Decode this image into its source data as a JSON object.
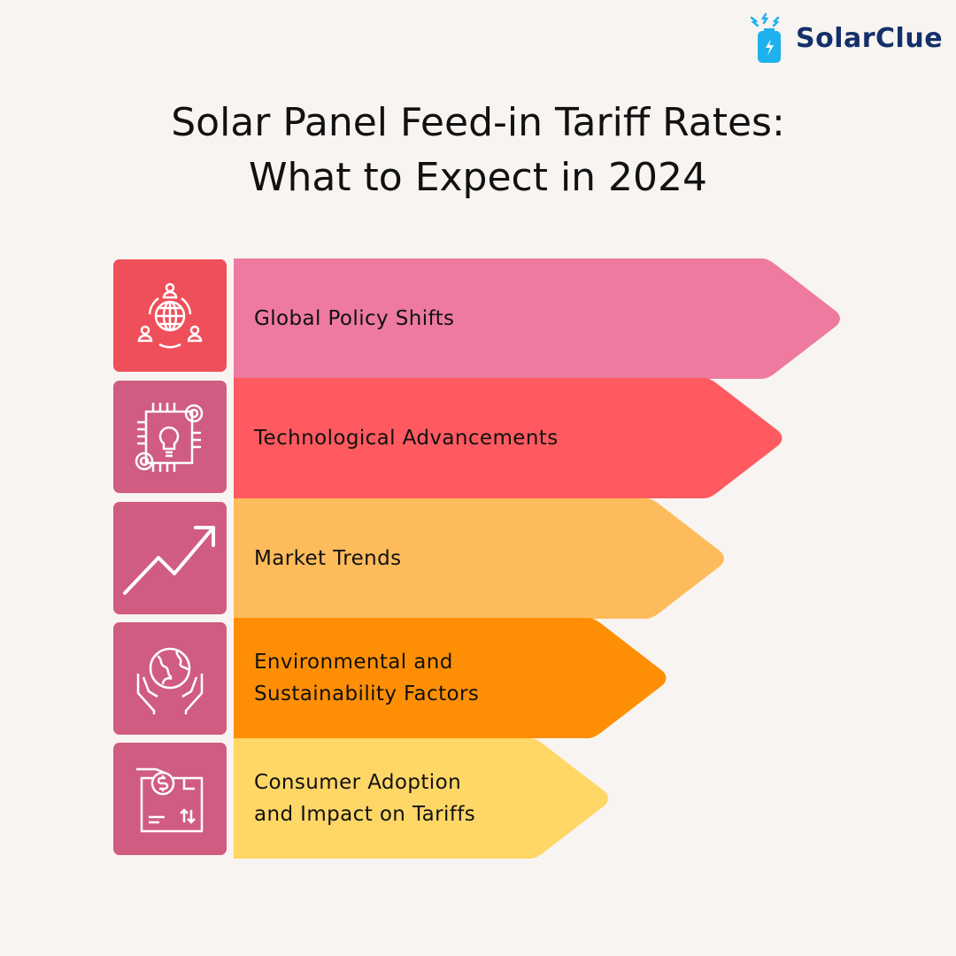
{
  "brand": {
    "name": "SolarClue",
    "icon": "battery-bolt-icon",
    "color": "#14306b",
    "icon_color": "#1fb1ee"
  },
  "title": {
    "line1": "Solar Panel Feed-in Tariff Rates:",
    "line2": "What to Expect in 2024"
  },
  "items": [
    {
      "lines": [
        "Global Policy Shifts"
      ],
      "icon": "global-network-people-icon",
      "color": "#ee7aa0",
      "icon_bg": "#ef4f58"
    },
    {
      "lines": [
        "Technological Advancements"
      ],
      "icon": "lightbulb-chip-gears-icon",
      "color": "#fe5a60",
      "icon_bg": "#d05c82"
    },
    {
      "lines": [
        "Market Trends"
      ],
      "icon": "trend-up-arrow-icon",
      "color": "#febb5b",
      "icon_bg": "#d05c82"
    },
    {
      "lines": [
        "Environmental and",
        "Sustainability Factors"
      ],
      "icon": "hands-globe-icon",
      "color": "#fe8f05",
      "icon_bg": "#d05c82"
    },
    {
      "lines": [
        "Consumer Adoption",
        "and Impact on Tariffs"
      ],
      "icon": "payment-exchange-icon",
      "color": "#fed766",
      "icon_bg": "#d05c82"
    }
  ]
}
